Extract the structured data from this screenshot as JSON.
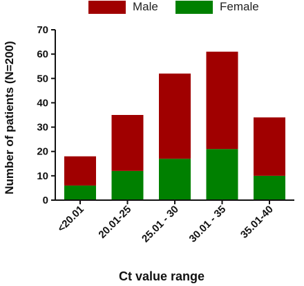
{
  "chart_data": {
    "type": "bar",
    "stacked": true,
    "categories": [
      "<20.01",
      "20.01-25",
      "25.01 - 30",
      "30.01 - 35",
      "35.01-40"
    ],
    "series": [
      {
        "name": "Female",
        "values": [
          6,
          12,
          17,
          21,
          10
        ],
        "color": "#008000"
      },
      {
        "name": "Male",
        "values": [
          12,
          23,
          35,
          40,
          24
        ],
        "color": "#a00000"
      }
    ],
    "xlabel": "Ct value range",
    "ylabel": "Number of patients (N=200)",
    "ylim": [
      0,
      70
    ],
    "yticks": [
      0,
      10,
      20,
      30,
      40,
      50,
      60,
      70
    ],
    "grid": false,
    "legend_position": "top"
  },
  "legend": {
    "male_label": "Male",
    "female_label": "Female"
  }
}
